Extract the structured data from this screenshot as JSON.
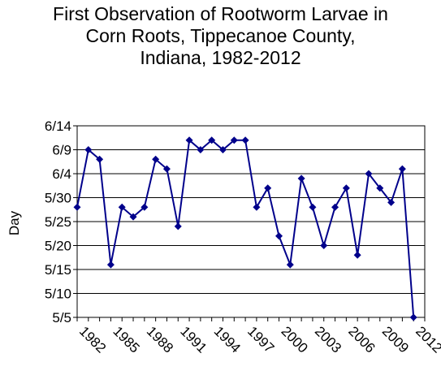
{
  "chart_data": {
    "type": "line",
    "title_lines": [
      "First Observation of Rootworm Larvae in",
      "Corn Roots, Tippecanoe County,",
      "Indiana, 1982-2012"
    ],
    "xlabel": "",
    "ylabel": "Day",
    "x_tick_labels": [
      "1982",
      "1985",
      "1988",
      "1991",
      "1994",
      "1997",
      "2000",
      "2003",
      "2006",
      "2009",
      "2012"
    ],
    "y_tick_labels": [
      "5/5",
      "5/10",
      "5/15",
      "5/20",
      "5/25",
      "5/30",
      "6/4",
      "6/9",
      "6/14"
    ],
    "xlim": [
      1981,
      2012
    ],
    "ylim_day_of_may": [
      5,
      45
    ],
    "y_unit_note_hidden": true,
    "grid": true,
    "legend": false,
    "marker": "diamond",
    "line_color": "#00008B",
    "series": [
      {
        "x": [
          1981,
          1982,
          1983,
          1984,
          1985,
          1986,
          1987,
          1988,
          1989,
          1990,
          1991,
          1992,
          1993,
          1994,
          1995,
          1996,
          1997,
          1998,
          1999,
          2000,
          2001,
          2002,
          2003,
          2004,
          2005,
          2006,
          2007,
          2008,
          2009,
          2010,
          2011
        ],
        "values_day_of_may": [
          28,
          40,
          38,
          16,
          28,
          26,
          28,
          38,
          36,
          24,
          42,
          40,
          42,
          40,
          42,
          42,
          28,
          32,
          22,
          16,
          34,
          28,
          20,
          28,
          32,
          18,
          35,
          32,
          29,
          36,
          5
        ]
      }
    ]
  }
}
